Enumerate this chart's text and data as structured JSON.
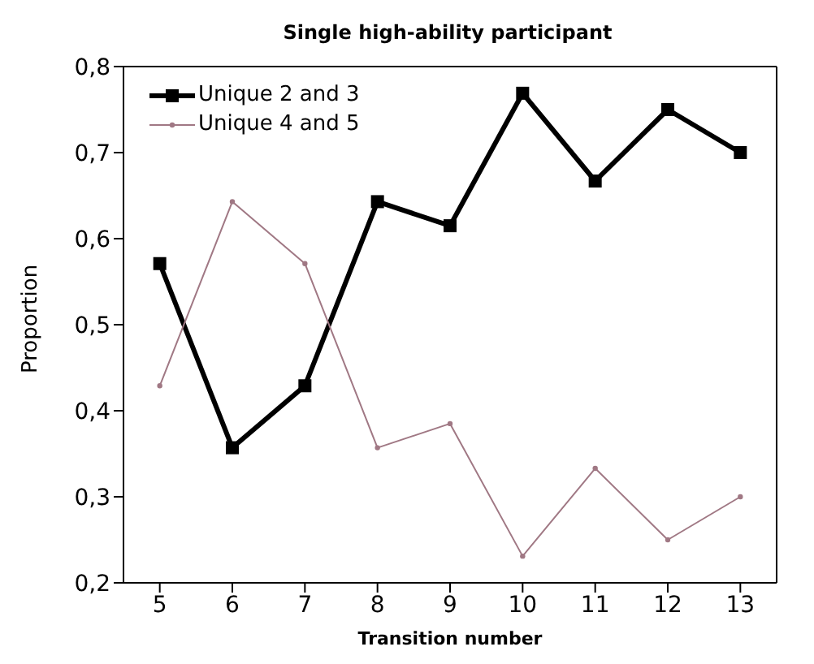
{
  "chart_data": {
    "type": "line",
    "title": "Single high-ability participant",
    "xlabel": "Transition number",
    "ylabel": "Proportion",
    "x": [
      5,
      6,
      7,
      8,
      9,
      10,
      11,
      12,
      13
    ],
    "series": [
      {
        "name": "Unique 2 and 3",
        "color": "#000000",
        "marker": "square",
        "values": [
          0.571,
          0.357,
          0.429,
          0.643,
          0.615,
          0.769,
          0.667,
          0.75,
          0.7
        ]
      },
      {
        "name": "Unique 4 and 5",
        "color": "#a07884",
        "marker": "circle",
        "values": [
          0.429,
          0.643,
          0.571,
          0.357,
          0.385,
          0.231,
          0.333,
          0.25,
          0.3
        ]
      }
    ],
    "xlim": [
      4.5,
      13.5
    ],
    "xticks": [
      5,
      6,
      7,
      8,
      9,
      10,
      11,
      12,
      13
    ],
    "ylim": [
      0.2,
      0.8
    ],
    "yticks": [
      {
        "value": 0.2,
        "label": "0,2"
      },
      {
        "value": 0.3,
        "label": "0,3"
      },
      {
        "value": 0.4,
        "label": "0,4"
      },
      {
        "value": 0.5,
        "label": "0,5"
      },
      {
        "value": 0.6,
        "label": "0,6"
      },
      {
        "value": 0.7,
        "label": "0,7"
      },
      {
        "value": 0.8,
        "label": "0,8"
      }
    ],
    "grid": false,
    "legend": "top left"
  }
}
